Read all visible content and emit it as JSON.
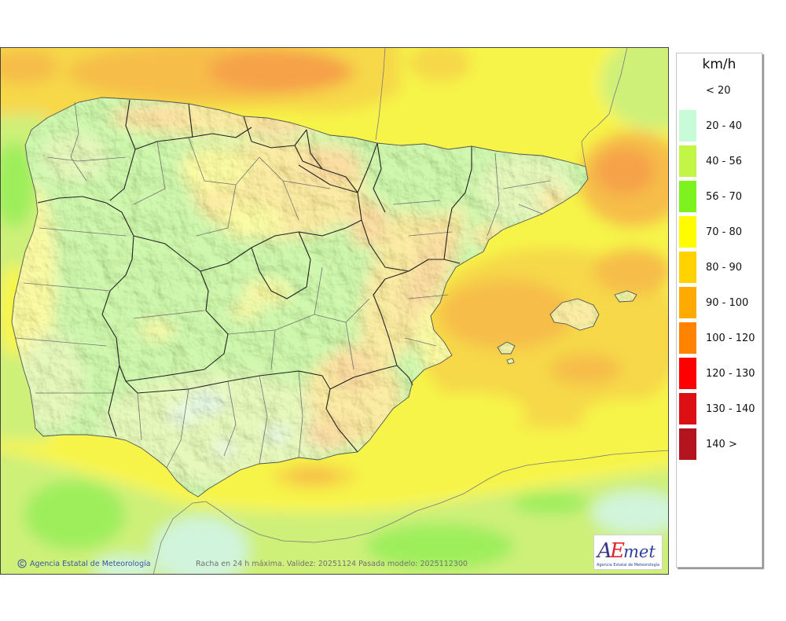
{
  "map": {
    "caption": "Racha en 24 h máxima. Validez: 20251124 Pasada modelo: 2025112300",
    "credit": "Agencia Estatal de Meteorología",
    "credit_icon": "copyright-icon",
    "logo": {
      "mark_a": "A",
      "mark_e": "E",
      "mark_met": "met",
      "subtitle": "Agencia Estatal de Meteorología",
      "colors": {
        "a": "#35358a",
        "e": "#e3262e",
        "met": "#2a3f9e"
      }
    },
    "land_mask_color": "#e6e6e6"
  },
  "legend": {
    "unit": "km/h",
    "classes": [
      {
        "label": "< 20",
        "color": ""
      },
      {
        "label": "20 - 40",
        "color": "#c8fcd8"
      },
      {
        "label": "40 - 56",
        "color": "#c3f546"
      },
      {
        "label": "56 - 70",
        "color": "#7df21e"
      },
      {
        "label": "70 - 80",
        "color": "#fffc00"
      },
      {
        "label": "80 - 90",
        "color": "#ffd200"
      },
      {
        "label": "90 - 100",
        "color": "#ffaa00"
      },
      {
        "label": "100 - 120",
        "color": "#ff8200"
      },
      {
        "label": "120 - 130",
        "color": "#ff0000"
      },
      {
        "label": "130 - 140",
        "color": "#dc0f14"
      },
      {
        "label": "140 >",
        "color": "#b4141e"
      }
    ]
  }
}
